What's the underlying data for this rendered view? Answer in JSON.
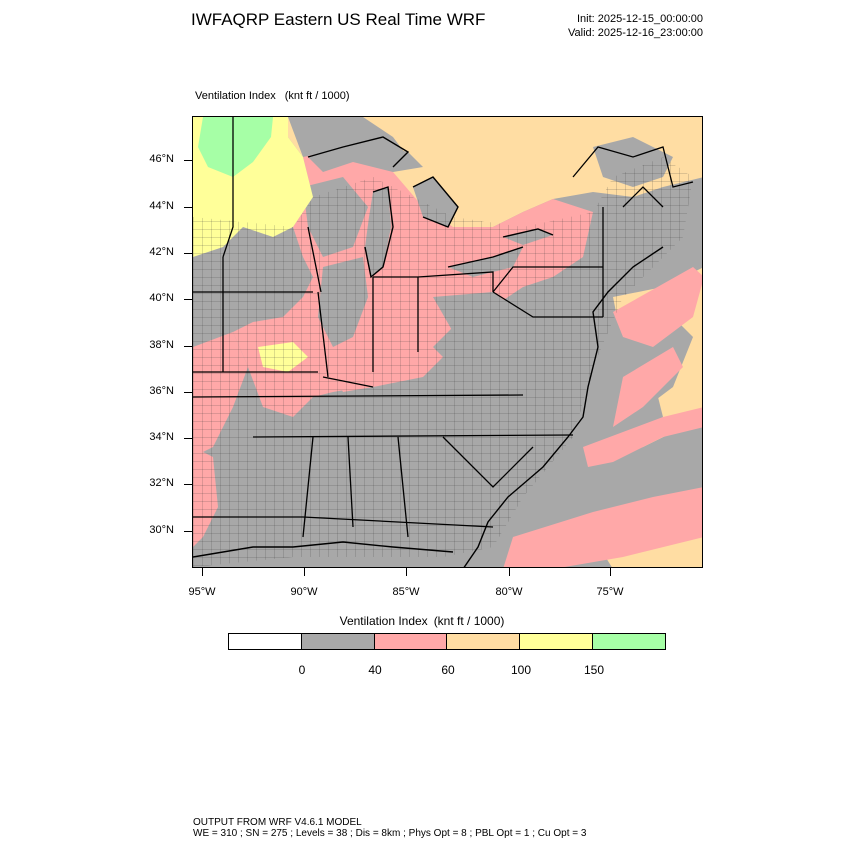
{
  "header": {
    "title": "IWFAQRP Eastern US Real Time WRF",
    "init": "Init: 2025-12-15_00:00:00",
    "valid": "Valid: 2025-12-16_23:00:00"
  },
  "field": {
    "name": "Ventilation Index",
    "units": "(knt ft / 1000)"
  },
  "map": {
    "lat_labels": [
      "46°N",
      "44°N",
      "42°N",
      "40°N",
      "38°N",
      "36°N",
      "34°N",
      "32°N",
      "30°N"
    ],
    "lon_labels": [
      "95°W",
      "90°W",
      "85°W",
      "80°W",
      "75°W"
    ],
    "region": "Eastern United States",
    "dominant_category": "0-40"
  },
  "colorbar": {
    "title_name": "Ventilation Index",
    "title_units": "(knt ft / 1000)",
    "colors": [
      "#ffffff",
      "#a8a8a8",
      "#ffa8a8",
      "#ffdda3",
      "#ffff99",
      "#a6ffa6"
    ],
    "labels": [
      "0",
      "40",
      "60",
      "100",
      "150"
    ]
  },
  "footer": {
    "line1": "OUTPUT FROM WRF V4.6.1 MODEL",
    "line2": "WE = 310 ; SN = 275 ; Levels = 38 ; Dis = 8km ; Phys Opt = 8 ; PBL Opt = 1 ; Cu Opt = 3"
  }
}
